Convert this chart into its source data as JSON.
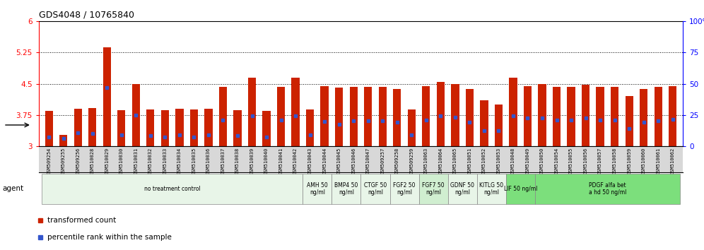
{
  "title": "GDS4048 / 10765840",
  "xlabels": [
    "GSM509254",
    "GSM509255",
    "GSM509256",
    "GSM510028",
    "GSM510029",
    "GSM510030",
    "GSM510031",
    "GSM510032",
    "GSM510033",
    "GSM510034",
    "GSM510035",
    "GSM510036",
    "GSM510037",
    "GSM510038",
    "GSM510039",
    "GSM510040",
    "GSM510041",
    "GSM510042",
    "GSM510043",
    "GSM510044",
    "GSM510045",
    "GSM510046",
    "GSM510047",
    "GSM509257",
    "GSM509258",
    "GSM509259",
    "GSM510063",
    "GSM510064",
    "GSM510065",
    "GSM510051",
    "GSM510052",
    "GSM510053",
    "GSM510048",
    "GSM510049",
    "GSM510050",
    "GSM510054",
    "GSM510055",
    "GSM510056",
    "GSM510057",
    "GSM510058",
    "GSM510059",
    "GSM510060",
    "GSM510061",
    "GSM510062"
  ],
  "bar_values": [
    3.85,
    3.28,
    3.9,
    3.92,
    5.37,
    3.87,
    4.5,
    3.88,
    3.87,
    3.9,
    3.88,
    3.9,
    4.43,
    3.87,
    4.65,
    3.85,
    4.43,
    4.65,
    3.88,
    4.45,
    4.4,
    4.43,
    4.43,
    4.43,
    4.38,
    3.88,
    4.45,
    4.55,
    4.5,
    4.38,
    4.1,
    4.0,
    4.65,
    4.45,
    4.5,
    4.43,
    4.43,
    4.47,
    4.43,
    4.43,
    4.2,
    4.38,
    4.43,
    4.45
  ],
  "percentile_values": [
    3.22,
    3.18,
    3.32,
    3.3,
    4.4,
    3.28,
    3.75,
    3.25,
    3.22,
    3.28,
    3.22,
    3.27,
    3.63,
    3.25,
    3.73,
    3.22,
    3.63,
    3.73,
    3.27,
    3.6,
    3.52,
    3.62,
    3.62,
    3.62,
    3.57,
    3.27,
    3.63,
    3.73,
    3.7,
    3.57,
    3.38,
    3.38,
    3.73,
    3.68,
    3.68,
    3.63,
    3.63,
    3.68,
    3.63,
    3.63,
    3.42,
    3.57,
    3.62,
    3.65
  ],
  "bar_color": "#cc2200",
  "dot_color": "#3355cc",
  "ymin": 3.0,
  "ymax": 6.0,
  "yticks": [
    3.0,
    3.75,
    4.5,
    5.25,
    6.0
  ],
  "ytick_labels": [
    "3",
    "3.75",
    "4.5",
    "5.25",
    "6"
  ],
  "right_yticks": [
    0,
    25,
    50,
    75,
    100
  ],
  "right_ytick_labels": [
    "0",
    "25",
    "50",
    "75",
    "100%"
  ],
  "hlines": [
    3.75,
    4.5,
    5.25
  ],
  "agent_groups": [
    {
      "label": "no treatment control",
      "start": 0,
      "end": 18,
      "color": "#e8f5e8"
    },
    {
      "label": "AMH 50\nng/ml",
      "start": 18,
      "end": 20,
      "color": "#e8f5e8"
    },
    {
      "label": "BMP4 50\nng/ml",
      "start": 20,
      "end": 22,
      "color": "#e8f5e8"
    },
    {
      "label": "CTGF 50\nng/ml",
      "start": 22,
      "end": 24,
      "color": "#e8f5e8"
    },
    {
      "label": "FGF2 50\nng/ml",
      "start": 24,
      "end": 26,
      "color": "#e8f5e8"
    },
    {
      "label": "FGF7 50\nng/ml",
      "start": 26,
      "end": 28,
      "color": "#d0eed0"
    },
    {
      "label": "GDNF 50\nng/ml",
      "start": 28,
      "end": 30,
      "color": "#e8f5e8"
    },
    {
      "label": "KITLG 50\nng/ml",
      "start": 30,
      "end": 32,
      "color": "#e8f5e8"
    },
    {
      "label": "LIF 50 ng/ml",
      "start": 32,
      "end": 34,
      "color": "#7cdf7c"
    },
    {
      "label": "PDGF alfa bet\na hd 50 ng/ml",
      "start": 34,
      "end": 44,
      "color": "#7cdf7c"
    }
  ],
  "legend_items": [
    {
      "label": "transformed count",
      "color": "#cc2200"
    },
    {
      "label": "percentile rank within the sample",
      "color": "#3355cc"
    }
  ],
  "title_fontsize": 9,
  "bar_width": 0.55,
  "agent_label": "agent"
}
